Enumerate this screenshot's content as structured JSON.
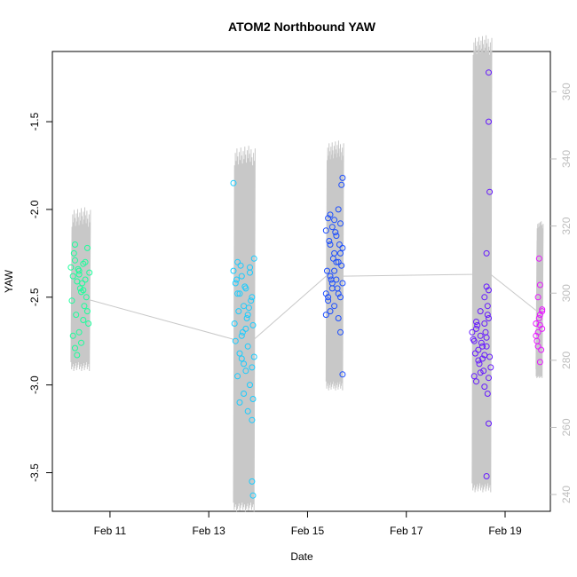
{
  "chart_data": {
    "type": "scatter",
    "title": "ATOM2 Northbound YAW",
    "xlabel": "Date",
    "ylabel": "YAW",
    "xlim": [
      "2013-02-09T20:00",
      "2013-02-19T22:00"
    ],
    "x_ticks": [
      {
        "at": "2013-02-11T00:00",
        "label": "Feb 11"
      },
      {
        "at": "2013-02-13T00:00",
        "label": "Feb 13"
      },
      {
        "at": "2013-02-15T00:00",
        "label": "Feb 15"
      },
      {
        "at": "2013-02-17T00:00",
        "label": "Feb 17"
      },
      {
        "at": "2013-02-19T00:00",
        "label": "Feb 19"
      }
    ],
    "ylim": [
      -3.72,
      -1.1
    ],
    "y_ticks": [
      -3.5,
      -3.0,
      -2.5,
      -2.0,
      -1.5
    ],
    "y_tick_labels": [
      "-3.5",
      "-3.0",
      "-2.5",
      "-2.0",
      "-1.5"
    ],
    "y2_range": [
      235,
      372
    ],
    "y2_ticks": [
      240,
      260,
      280,
      300,
      320,
      340,
      360
    ],
    "y2_tick_labels": [
      "240",
      "260",
      "280",
      "300",
      "320",
      "340",
      "360"
    ],
    "line_color": "#c8c8c8",
    "tick2_color": "#bebebe",
    "point_groups": [
      {
        "color": "#1aff9a",
        "x": [
          "2013-02-10T05:00",
          "2013-02-10T06:00",
          "2013-02-10T07:00",
          "2013-02-10T08:00",
          "2013-02-10T09:00",
          "2013-02-10T10:00",
          "2013-02-10T11:00",
          "2013-02-10T12:00",
          "2013-02-10T13:00",
          "2013-02-10T14:00",
          "2013-02-10T05:30",
          "2013-02-10T07:30",
          "2013-02-10T09:30",
          "2013-02-10T11:30",
          "2013-02-10T13:30",
          "2013-02-10T06:30",
          "2013-02-10T08:30",
          "2013-02-10T10:30",
          "2013-02-10T12:30",
          "2013-02-10T06:00",
          "2013-02-10T07:00",
          "2013-02-10T09:00",
          "2013-02-10T11:00",
          "2013-02-10T13:00",
          "2013-02-10T08:00",
          "2013-02-10T10:00",
          "2013-02-10T12:00",
          "2013-02-10T07:00",
          "2013-02-10T11:00",
          "2013-02-10T09:00"
        ],
        "y": [
          -2.33,
          -2.38,
          -2.29,
          -2.41,
          -2.35,
          -2.47,
          -2.31,
          -2.4,
          -2.22,
          -2.36,
          -2.52,
          -2.6,
          -2.45,
          -2.55,
          -2.65,
          -2.25,
          -2.34,
          -2.42,
          -2.5,
          -2.72,
          -2.79,
          -2.7,
          -2.63,
          -2.58,
          -2.83,
          -2.76,
          -2.3,
          -2.2,
          -2.46,
          -2.37
        ]
      },
      {
        "color": "#19ccff",
        "x": [
          "2013-02-13T12:00",
          "2013-02-13T13:00",
          "2013-02-13T14:00",
          "2013-02-13T15:00",
          "2013-02-13T16:00",
          "2013-02-13T17:00",
          "2013-02-13T18:00",
          "2013-02-13T19:00",
          "2013-02-13T20:00",
          "2013-02-13T21:00",
          "2013-02-13T22:00",
          "2013-02-13T12:30",
          "2013-02-13T14:30",
          "2013-02-13T16:30",
          "2013-02-13T18:30",
          "2013-02-13T20:30",
          "2013-02-13T13:30",
          "2013-02-13T15:30",
          "2013-02-13T17:30",
          "2013-02-13T19:30",
          "2013-02-13T21:30",
          "2013-02-13T13:00",
          "2013-02-13T15:00",
          "2013-02-13T17:00",
          "2013-02-13T19:00",
          "2013-02-13T21:00",
          "2013-02-13T14:00",
          "2013-02-13T16:00",
          "2013-02-13T18:00",
          "2013-02-13T20:00",
          "2013-02-13T22:00",
          "2013-02-13T15:00",
          "2013-02-13T17:00",
          "2013-02-13T19:00",
          "2013-02-13T21:00",
          "2013-02-13T16:00",
          "2013-02-13T18:00",
          "2013-02-13T20:00",
          "2013-02-13T21:30",
          "2013-02-13T21:00",
          "2013-02-13T21:30",
          "2013-02-13T12:00",
          "2013-02-13T14:00"
        ],
        "y": [
          -2.35,
          -2.42,
          -2.3,
          -2.48,
          -2.38,
          -2.55,
          -2.45,
          -2.6,
          -2.33,
          -2.5,
          -2.28,
          -2.65,
          -2.58,
          -2.7,
          -2.62,
          -2.52,
          -2.4,
          -2.32,
          -2.44,
          -2.56,
          -2.66,
          -2.75,
          -2.82,
          -2.88,
          -2.78,
          -2.9,
          -2.95,
          -2.85,
          -2.92,
          -3.0,
          -2.84,
          -3.1,
          -3.05,
          -3.15,
          -3.2,
          -2.72,
          -2.68,
          -2.36,
          -3.08,
          -3.55,
          -3.63,
          -1.85,
          -2.48
        ]
      },
      {
        "color": "#1a4dff",
        "x": [
          "2013-02-15T09:00",
          "2013-02-15T10:00",
          "2013-02-15T11:00",
          "2013-02-15T12:00",
          "2013-02-15T13:00",
          "2013-02-15T14:00",
          "2013-02-15T15:00",
          "2013-02-15T16:00",
          "2013-02-15T17:00",
          "2013-02-15T09:30",
          "2013-02-15T10:30",
          "2013-02-15T11:30",
          "2013-02-15T12:30",
          "2013-02-15T13:30",
          "2013-02-15T14:30",
          "2013-02-15T15:30",
          "2013-02-15T16:30",
          "2013-02-15T10:00",
          "2013-02-15T11:00",
          "2013-02-15T12:00",
          "2013-02-15T13:00",
          "2013-02-15T14:00",
          "2013-02-15T15:00",
          "2013-02-15T16:00",
          "2013-02-15T09:00",
          "2013-02-15T10:00",
          "2013-02-15T11:00",
          "2013-02-15T12:00",
          "2013-02-15T13:00",
          "2013-02-15T14:00",
          "2013-02-15T15:00",
          "2013-02-15T16:00",
          "2013-02-15T17:00",
          "2013-02-15T11:00",
          "2013-02-15T13:00",
          "2013-02-15T15:00",
          "2013-02-15T16:00",
          "2013-02-15T17:00",
          "2013-02-15T17:00",
          "2013-02-15T16:30",
          "2013-02-15T09:00"
        ],
        "y": [
          -2.12,
          -2.05,
          -2.2,
          -2.1,
          -2.25,
          -2.15,
          -2.3,
          -2.08,
          -2.22,
          -2.35,
          -2.18,
          -2.4,
          -2.28,
          -2.13,
          -2.45,
          -2.2,
          -2.32,
          -2.5,
          -2.38,
          -2.42,
          -2.55,
          -2.3,
          -2.48,
          -2.25,
          -2.6,
          -2.52,
          -2.58,
          -2.45,
          -2.35,
          -2.4,
          -2.62,
          -2.5,
          -2.42,
          -2.03,
          -2.06,
          -2.0,
          -2.7,
          -1.82,
          -2.94,
          -1.86,
          -2.48
        ]
      },
      {
        "color": "#6619ff",
        "x": [
          "2013-02-18T08:00",
          "2013-02-18T09:00",
          "2013-02-18T10:00",
          "2013-02-18T11:00",
          "2013-02-18T12:00",
          "2013-02-18T13:00",
          "2013-02-18T14:00",
          "2013-02-18T15:00",
          "2013-02-18T16:00",
          "2013-02-18T17:00",
          "2013-02-18T08:30",
          "2013-02-18T09:30",
          "2013-02-18T10:30",
          "2013-02-18T11:30",
          "2013-02-18T12:30",
          "2013-02-18T13:30",
          "2013-02-18T14:30",
          "2013-02-18T15:30",
          "2013-02-18T16:30",
          "2013-02-18T09:00",
          "2013-02-18T10:00",
          "2013-02-18T11:00",
          "2013-02-18T12:00",
          "2013-02-18T13:00",
          "2013-02-18T14:00",
          "2013-02-18T15:00",
          "2013-02-18T16:00",
          "2013-02-18T10:00",
          "2013-02-18T12:00",
          "2013-02-18T14:00",
          "2013-02-18T16:00",
          "2013-02-18T15:00",
          "2013-02-18T15:30",
          "2013-02-18T15:00",
          "2013-02-18T15:30",
          "2013-02-18T16:00",
          "2013-02-18T16:00",
          "2013-02-18T16:30",
          "2013-02-18T16:00",
          "2013-02-18T14:00",
          "2013-02-18T15:00"
        ],
        "y": [
          -2.7,
          -2.75,
          -2.68,
          -2.8,
          -2.72,
          -2.85,
          -2.65,
          -2.78,
          -2.62,
          -2.9,
          -2.74,
          -2.82,
          -2.66,
          -2.88,
          -2.76,
          -2.92,
          -2.7,
          -2.6,
          -2.84,
          -2.95,
          -2.98,
          -2.86,
          -2.93,
          -2.78,
          -2.83,
          -2.73,
          -2.96,
          -2.64,
          -2.58,
          -2.5,
          -2.46,
          -2.44,
          -2.55,
          -2.25,
          -3.05,
          -1.22,
          -1.5,
          -1.9,
          -3.22,
          -3.01,
          -3.52
        ]
      },
      {
        "color": "#e619ff",
        "x": [
          "2013-02-19T15:00",
          "2013-02-19T16:00",
          "2013-02-19T17:00",
          "2013-02-19T18:00",
          "2013-02-19T15:30",
          "2013-02-19T16:30",
          "2013-02-19T17:30",
          "2013-02-19T15:00",
          "2013-02-19T16:00",
          "2013-02-19T17:00",
          "2013-02-19T18:00",
          "2013-02-19T16:00",
          "2013-02-19T17:00",
          "2013-02-19T18:00",
          "2013-02-19T16:30",
          "2013-02-19T17:00"
        ],
        "y": [
          -2.65,
          -2.7,
          -2.6,
          -2.68,
          -2.75,
          -2.62,
          -2.8,
          -2.72,
          -2.78,
          -2.66,
          -2.58,
          -2.5,
          -2.43,
          -2.57,
          -2.28,
          -2.87
        ]
      }
    ]
  }
}
